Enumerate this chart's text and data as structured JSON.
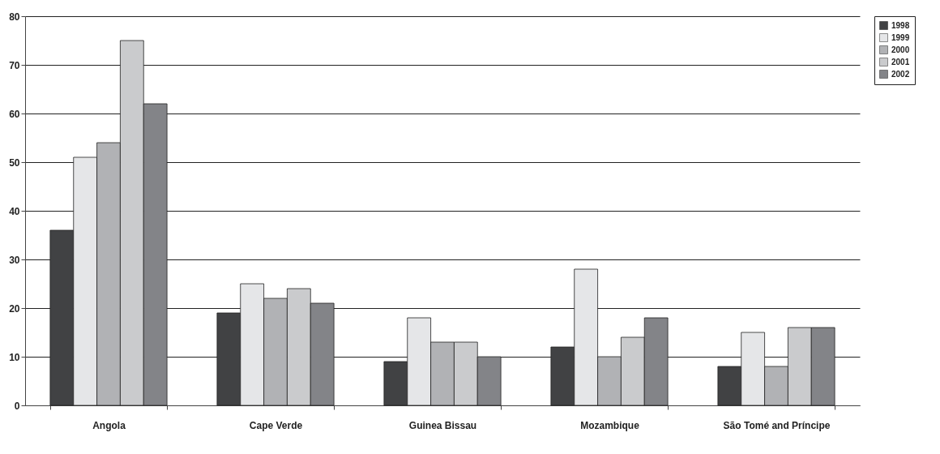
{
  "chart_data": {
    "type": "bar",
    "categories": [
      "Angola",
      "Cape Verde",
      "Guinea Bissau",
      "Mozambique",
      "São Tomé and Príncipe"
    ],
    "series": [
      {
        "name": "1998",
        "color": "#414244",
        "values": [
          36,
          19,
          9,
          12,
          8
        ]
      },
      {
        "name": "1999",
        "color": "#e5e6e8",
        "values": [
          51,
          25,
          18,
          28,
          15
        ]
      },
      {
        "name": "2000",
        "color": "#b1b2b5",
        "values": [
          54,
          22,
          13,
          10,
          8
        ]
      },
      {
        "name": "2001",
        "color": "#cacbcd",
        "values": [
          75,
          24,
          13,
          14,
          16
        ]
      },
      {
        "name": "2002",
        "color": "#838488",
        "values": [
          62,
          21,
          10,
          18,
          16
        ]
      }
    ],
    "ylim": [
      0,
      80
    ],
    "yticks": [
      0,
      10,
      20,
      30,
      40,
      50,
      60,
      70,
      80
    ],
    "grid": "y",
    "legend": "right"
  }
}
